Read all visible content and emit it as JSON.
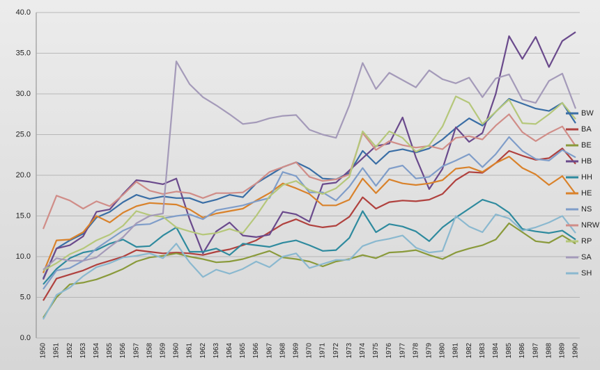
{
  "chart_data": {
    "type": "line",
    "categories": [
      "1950",
      "1951",
      "1952",
      "1953",
      "1954",
      "1955",
      "1956",
      "1957",
      "1958",
      "1959",
      "1960",
      "1961",
      "1962",
      "1963",
      "1964",
      "1965",
      "1966",
      "1967",
      "1968",
      "1969",
      "1970",
      "1971",
      "1972",
      "1973",
      "1974",
      "1975",
      "1976",
      "1977",
      "1978",
      "1979",
      "1980",
      "1981",
      "1982",
      "1983",
      "1984",
      "1985",
      "1986",
      "1987",
      "1988",
      "1989",
      "1990"
    ],
    "ylim": [
      0,
      40
    ],
    "yticks": [
      {
        "value": 0,
        "label": "0.0"
      },
      {
        "value": 5,
        "label": "5.0"
      },
      {
        "value": 10,
        "label": "10.0"
      },
      {
        "value": 15,
        "label": "15.0"
      },
      {
        "value": 20,
        "label": "20.0"
      },
      {
        "value": 25,
        "label": "25.0"
      },
      {
        "value": 30,
        "label": "30.0"
      },
      {
        "value": 35,
        "label": "35.0"
      },
      {
        "value": 40,
        "label": "40.0"
      }
    ],
    "grid": true,
    "legend": "right",
    "series": [
      {
        "name": "BW",
        "color": "#3a6ea5",
        "values": [
          7.3,
          11,
          12,
          12.8,
          14.8,
          15.5,
          16.7,
          17.6,
          17.1,
          17.4,
          17.2,
          17.2,
          16.6,
          17,
          17.6,
          17.3,
          19,
          20,
          21,
          21.6,
          20.8,
          19.6,
          19.5,
          20.3,
          23,
          21.4,
          22.9,
          23.2,
          22.8,
          23.3,
          24.4,
          25.8,
          27,
          26.1,
          27.8,
          29.4,
          28.8,
          28.2,
          27.9,
          28.9,
          26.4
        ]
      },
      {
        "name": "BA",
        "color": "#b0413e",
        "values": [
          4.6,
          7.3,
          7.8,
          8.3,
          9,
          9.5,
          10,
          10.8,
          10.6,
          10.4,
          10.5,
          10.4,
          10.2,
          10.6,
          10.9,
          11.4,
          12,
          13,
          14,
          14.6,
          13.9,
          13.6,
          13.8,
          14.9,
          17.3,
          15.9,
          16.7,
          16.9,
          16.8,
          17,
          17.7,
          19.4,
          20.4,
          20.3,
          21.5,
          23,
          22.4,
          21.9,
          22.1,
          23.3,
          21.4
        ]
      },
      {
        "name": "BE",
        "color": "#8a9a3b",
        "values": [
          2.5,
          5,
          6.6,
          6.8,
          7.2,
          7.8,
          8.5,
          9.4,
          9.9,
          10.1,
          10.4,
          10,
          9.7,
          9.3,
          9.4,
          9.7,
          10.2,
          10.7,
          9.9,
          9.7,
          9.4,
          8.8,
          9.4,
          9.7,
          10.2,
          9.8,
          10.5,
          10.6,
          10.8,
          10.2,
          9.7,
          10.5,
          11,
          11.4,
          12.1,
          14.1,
          13,
          11.9,
          11.7,
          12.6,
          11.6
        ]
      },
      {
        "name": "HB",
        "color": "#6a4a8c",
        "values": [
          7.2,
          11,
          11.4,
          12.5,
          15.5,
          15.8,
          17.7,
          19.4,
          19.2,
          18.9,
          19.6,
          14.6,
          10.4,
          13.1,
          14.2,
          12.6,
          12.4,
          12.7,
          15.5,
          15.2,
          14.3,
          18.9,
          19.1,
          20.6,
          22.1,
          23.6,
          23.9,
          27.1,
          22.2,
          18.3,
          20.8,
          25.9,
          24.1,
          25.2,
          30,
          37.1,
          34.3,
          37,
          33.3,
          36.5,
          37.6
        ]
      },
      {
        "name": "HH",
        "color": "#2e8a9e",
        "values": [
          6.6,
          8.5,
          9.8,
          10.5,
          10.8,
          11.6,
          12.1,
          11.2,
          11.3,
          12.6,
          13.6,
          10.6,
          10.6,
          11,
          10.2,
          11.6,
          11.4,
          11.2,
          11.7,
          12,
          11.4,
          10.7,
          10.8,
          12.3,
          15.6,
          13,
          14,
          13.7,
          13.1,
          11.9,
          13.6,
          14.8,
          15.9,
          17,
          16.5,
          15.4,
          13.4,
          13.1,
          12.9,
          13.2,
          12.1
        ]
      },
      {
        "name": "HE",
        "color": "#d9822b",
        "values": [
          8,
          12,
          12.1,
          13,
          15,
          14.2,
          15.4,
          16.2,
          16.6,
          16.5,
          16.4,
          15.8,
          14.8,
          15.3,
          15.6,
          15.9,
          16.9,
          17.8,
          19,
          18.4,
          17.7,
          16.3,
          16.3,
          17,
          19.6,
          17.8,
          19.5,
          19,
          18.8,
          19,
          19.4,
          20.8,
          21,
          20.4,
          21.5,
          22.3,
          20.9,
          20.1,
          18.8,
          19.9,
          17.7
        ]
      },
      {
        "name": "NS",
        "color": "#7f9dc9",
        "values": [
          6,
          8.3,
          8.6,
          9.5,
          11,
          12.1,
          13.2,
          13.9,
          14,
          14.7,
          15,
          15.2,
          14.6,
          15.7,
          16,
          16.3,
          16.8,
          17.2,
          20.4,
          19.9,
          17.9,
          17.9,
          16.9,
          18.6,
          20.9,
          18.7,
          20.8,
          21.2,
          19.6,
          19.8,
          21.1,
          21.8,
          22.6,
          21,
          22.6,
          24.7,
          23,
          22,
          21.8,
          23.1,
          22.2
        ]
      },
      {
        "name": "NRW",
        "color": "#d08d88",
        "values": [
          13.4,
          17.5,
          16.9,
          15.9,
          16.8,
          16.2,
          17.6,
          19.2,
          18.1,
          17.7,
          18,
          17.8,
          17.2,
          17.8,
          17.8,
          17.9,
          19,
          20.4,
          21,
          21.6,
          19.8,
          19.3,
          19.5,
          20.1,
          25.2,
          23.1,
          24.2,
          23.7,
          23.4,
          23.6,
          23.2,
          24.6,
          24.8,
          24.4,
          26.1,
          27.5,
          25.3,
          24.2,
          25.2,
          26,
          23.6
        ]
      },
      {
        "name": "RP",
        "color": "#b5c77a",
        "values": [
          8.3,
          9.2,
          10.3,
          11,
          12,
          12.7,
          13.8,
          15.6,
          15.1,
          14.9,
          13.6,
          13.1,
          12.7,
          12.9,
          13.4,
          12.9,
          15,
          17.4,
          18.8,
          19.3,
          18.2,
          17.7,
          18.4,
          19.8,
          25.4,
          23.5,
          25.4,
          24.6,
          22.9,
          23.7,
          26,
          29.7,
          28.9,
          26.3,
          27.8,
          29.3,
          26.4,
          26.3,
          27.5,
          28.9,
          26.9
        ]
      },
      {
        "name": "SA",
        "color": "#a49ab9",
        "values": [
          8.4,
          9.8,
          9.5,
          9.5,
          9.9,
          11.2,
          12.4,
          14.1,
          15,
          15.3,
          34,
          31.2,
          29.6,
          28.6,
          27.5,
          26.3,
          26.5,
          27,
          27.3,
          27.4,
          25.6,
          25,
          24.6,
          28.6,
          33.8,
          30.6,
          32.6,
          31.7,
          30.8,
          32.9,
          31.8,
          31.3,
          32,
          29.6,
          31.9,
          32.4,
          29.3,
          28.9,
          31.6,
          32.5,
          28.2
        ]
      },
      {
        "name": "SH",
        "color": "#8ab8cf",
        "values": [
          2.3,
          5.3,
          6.2,
          7.6,
          8.7,
          9.2,
          9.9,
          10.1,
          10.4,
          9.8,
          11.6,
          9.3,
          7.5,
          8.4,
          7.9,
          8.5,
          9.4,
          8.7,
          10,
          10.4,
          8.6,
          9.1,
          9.6,
          9.6,
          11.3,
          11.9,
          12.2,
          12.6,
          11.1,
          10.5,
          10.7,
          15,
          13.7,
          13,
          15.2,
          14.7,
          13.2,
          13.6,
          14.2,
          15,
          12.9
        ]
      }
    ]
  }
}
